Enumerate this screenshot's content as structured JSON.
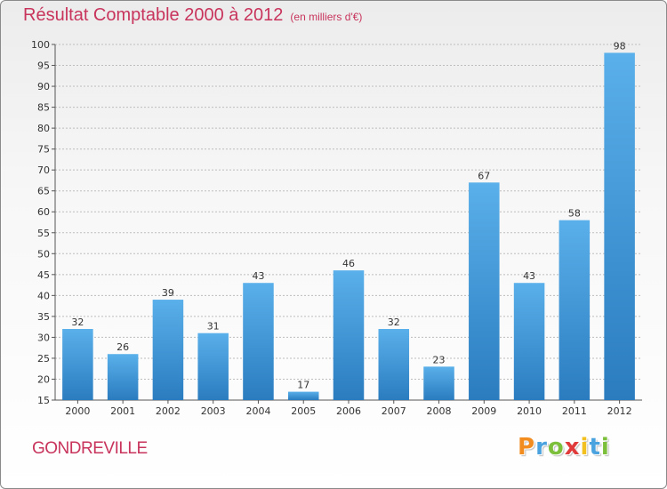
{
  "header": {
    "title": "Résultat Comptable 2000 à 2012",
    "subtitle": "(en milliers d'€)"
  },
  "footer": {
    "location": "GONDREVILLE",
    "brand": "Proxiti"
  },
  "colors": {
    "title": "#c8345c",
    "bar_top": "#5ab0ea",
    "bar_bottom": "#2a7cbf",
    "brand": [
      "#f28c1f",
      "#4aa3df",
      "#7bbf3a",
      "#e03a3a",
      "#f2c11f",
      "#4aa3df",
      "#7bbf3a"
    ]
  },
  "chart_data": {
    "type": "bar",
    "title": "Résultat Comptable 2000 à 2012",
    "subtitle": "(en milliers d'€)",
    "xlabel": "",
    "ylabel": "",
    "categories": [
      "2000",
      "2001",
      "2002",
      "2003",
      "2004",
      "2005",
      "2006",
      "2007",
      "2008",
      "2009",
      "2010",
      "2011",
      "2012"
    ],
    "values": [
      32,
      26,
      39,
      31,
      43,
      17,
      46,
      32,
      23,
      67,
      43,
      58,
      98
    ],
    "ylim": [
      15,
      100
    ],
    "yticks": [
      15,
      20,
      25,
      30,
      35,
      40,
      45,
      50,
      55,
      60,
      65,
      70,
      75,
      80,
      85,
      90,
      95,
      100
    ],
    "grid": true,
    "data_labels": true
  }
}
